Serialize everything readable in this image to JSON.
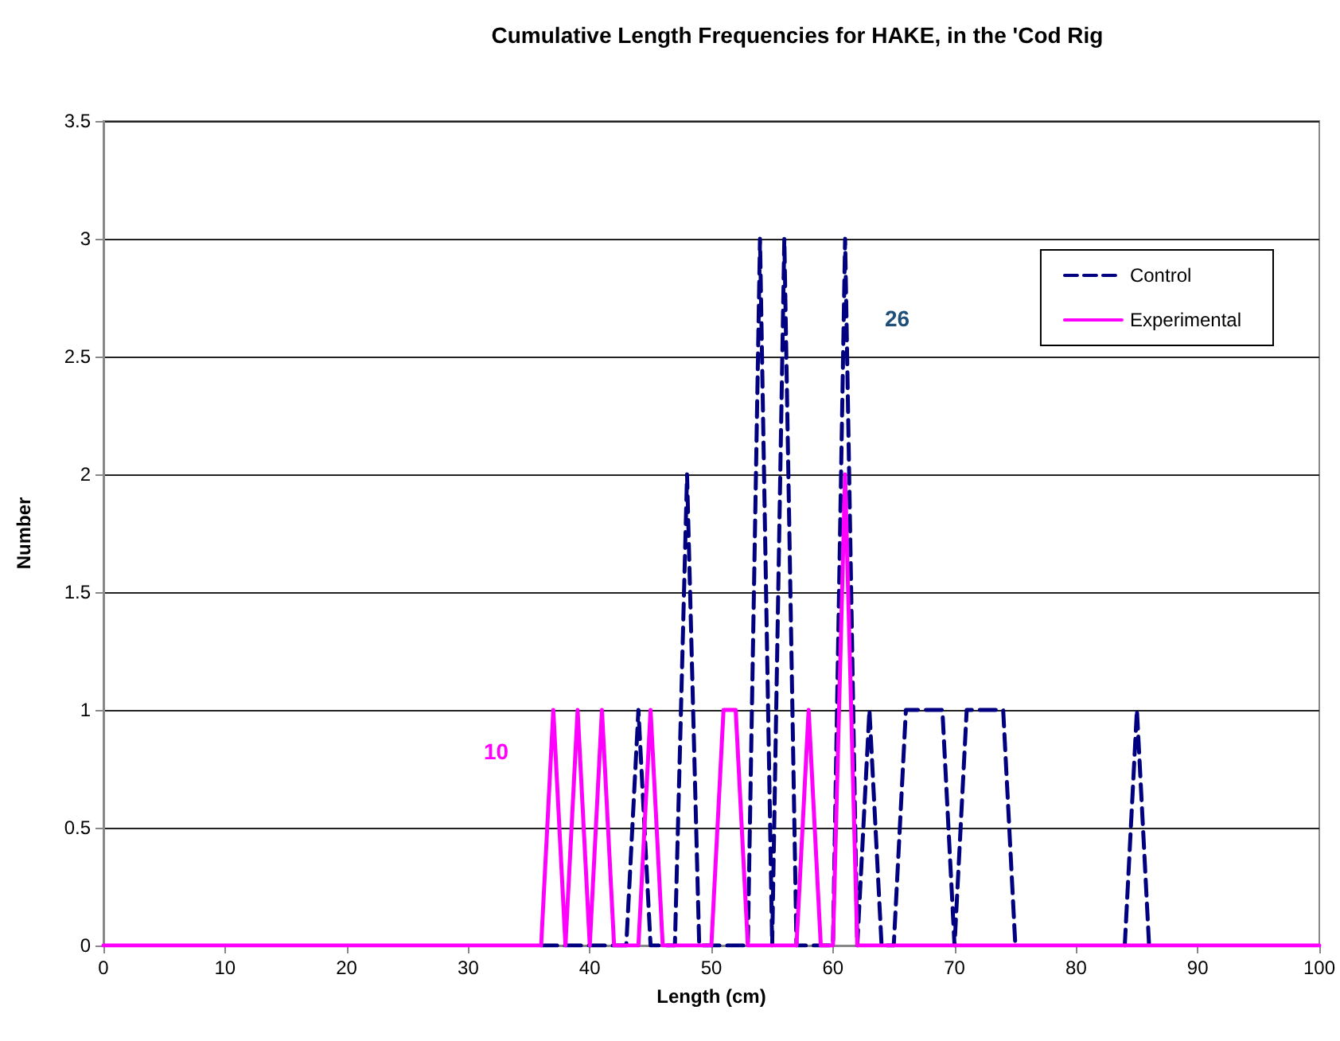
{
  "chart_data": {
    "type": "line",
    "title": "Cumulative Length Frequencies for HAKE, in the 'Cod Rig",
    "xlabel": "Length (cm)",
    "ylabel": "Number",
    "x": [
      0,
      1,
      2,
      3,
      4,
      5,
      6,
      7,
      8,
      9,
      10,
      11,
      12,
      13,
      14,
      15,
      16,
      17,
      18,
      19,
      20,
      21,
      22,
      23,
      24,
      25,
      26,
      27,
      28,
      29,
      30,
      31,
      32,
      33,
      34,
      35,
      36,
      37,
      38,
      39,
      40,
      41,
      42,
      43,
      44,
      45,
      46,
      47,
      48,
      49,
      50,
      51,
      52,
      53,
      54,
      55,
      56,
      57,
      58,
      59,
      60,
      61,
      62,
      63,
      64,
      65,
      66,
      67,
      68,
      69,
      70,
      71,
      72,
      73,
      74,
      75,
      76,
      77,
      78,
      79,
      80,
      81,
      82,
      83,
      84,
      85,
      86,
      87,
      88,
      89,
      90,
      91,
      92,
      93,
      94,
      95,
      96,
      97,
      98,
      99,
      100
    ],
    "series": [
      {
        "name": "Control",
        "color": "#000080",
        "line_style": "dashed",
        "values": [
          null,
          null,
          null,
          null,
          null,
          null,
          null,
          null,
          null,
          null,
          null,
          null,
          null,
          null,
          null,
          null,
          null,
          null,
          null,
          null,
          null,
          null,
          null,
          null,
          null,
          null,
          null,
          null,
          null,
          null,
          null,
          null,
          null,
          null,
          null,
          null,
          0,
          0,
          0,
          0,
          0,
          0,
          0,
          0,
          1,
          0,
          0,
          0,
          2,
          0,
          0,
          0,
          0,
          0,
          3,
          0,
          3,
          0,
          0,
          0,
          0,
          3,
          0,
          1,
          0,
          0,
          1,
          1,
          1,
          1,
          0,
          1,
          1,
          1,
          1,
          0,
          null,
          null,
          null,
          null,
          null,
          null,
          null,
          null,
          0,
          1,
          0,
          null,
          null,
          null,
          null,
          null,
          null,
          null,
          null,
          null,
          null,
          null,
          null,
          null,
          null
        ]
      },
      {
        "name": "Experimental",
        "color": "#ff00ff",
        "line_style": "solid",
        "values": [
          0,
          0,
          0,
          0,
          0,
          0,
          0,
          0,
          0,
          0,
          0,
          0,
          0,
          0,
          0,
          0,
          0,
          0,
          0,
          0,
          0,
          0,
          0,
          0,
          0,
          0,
          0,
          0,
          0,
          0,
          0,
          0,
          0,
          0,
          0,
          0,
          0,
          1,
          0,
          1,
          0,
          1,
          0,
          0,
          0,
          1,
          0,
          0,
          0,
          0,
          0,
          1,
          1,
          0,
          0,
          0,
          0,
          0,
          1,
          0,
          0,
          2,
          0,
          0,
          0,
          0,
          0,
          0,
          0,
          0,
          0,
          0,
          0,
          0,
          0,
          0,
          0,
          0,
          0,
          0,
          0,
          0,
          0,
          0,
          0,
          0,
          0,
          0,
          0,
          0,
          0,
          0,
          0,
          0,
          0,
          0,
          0,
          0,
          0,
          0,
          0
        ]
      }
    ],
    "annotations": [
      "26",
      "10"
    ],
    "xlim": [
      0,
      100
    ],
    "xticks": [
      0,
      10,
      20,
      30,
      40,
      50,
      60,
      70,
      80,
      90,
      100
    ],
    "ylim": [
      0,
      3.5
    ],
    "yticks": [
      0,
      0.5,
      1,
      1.5,
      2,
      2.5,
      3,
      3.5
    ],
    "grid": "y",
    "legend": "top right",
    "marker": "none"
  }
}
